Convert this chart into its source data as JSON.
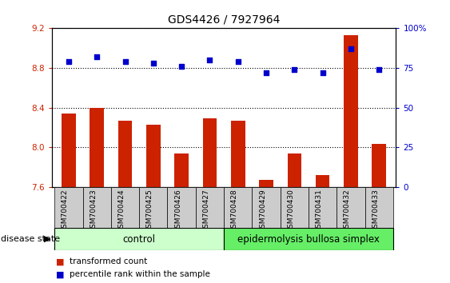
{
  "title": "GDS4426 / 7927964",
  "samples": [
    "GSM700422",
    "GSM700423",
    "GSM700424",
    "GSM700425",
    "GSM700426",
    "GSM700427",
    "GSM700428",
    "GSM700429",
    "GSM700430",
    "GSM700431",
    "GSM700432",
    "GSM700433"
  ],
  "bar_values": [
    8.34,
    8.4,
    8.27,
    8.23,
    7.94,
    8.29,
    8.27,
    7.67,
    7.94,
    7.72,
    9.13,
    8.03
  ],
  "dot_values": [
    79,
    82,
    79,
    78,
    76,
    80,
    79,
    72,
    74,
    72,
    87,
    74
  ],
  "bar_color": "#cc2200",
  "dot_color": "#0000cc",
  "ylim_left": [
    7.6,
    9.2
  ],
  "ylim_right": [
    0,
    100
  ],
  "yticks_left": [
    7.6,
    8.0,
    8.4,
    8.8,
    9.2
  ],
  "yticks_right": [
    0,
    25,
    50,
    75,
    100
  ],
  "control_count": 6,
  "control_label": "control",
  "disease_label": "epidermolysis bullosa simplex",
  "group_label": "disease state",
  "legend_bar": "transformed count",
  "legend_dot": "percentile rank within the sample",
  "control_color": "#ccffcc",
  "disease_color": "#66ee66",
  "tick_bg_color": "#cccccc",
  "title_fontsize": 10
}
